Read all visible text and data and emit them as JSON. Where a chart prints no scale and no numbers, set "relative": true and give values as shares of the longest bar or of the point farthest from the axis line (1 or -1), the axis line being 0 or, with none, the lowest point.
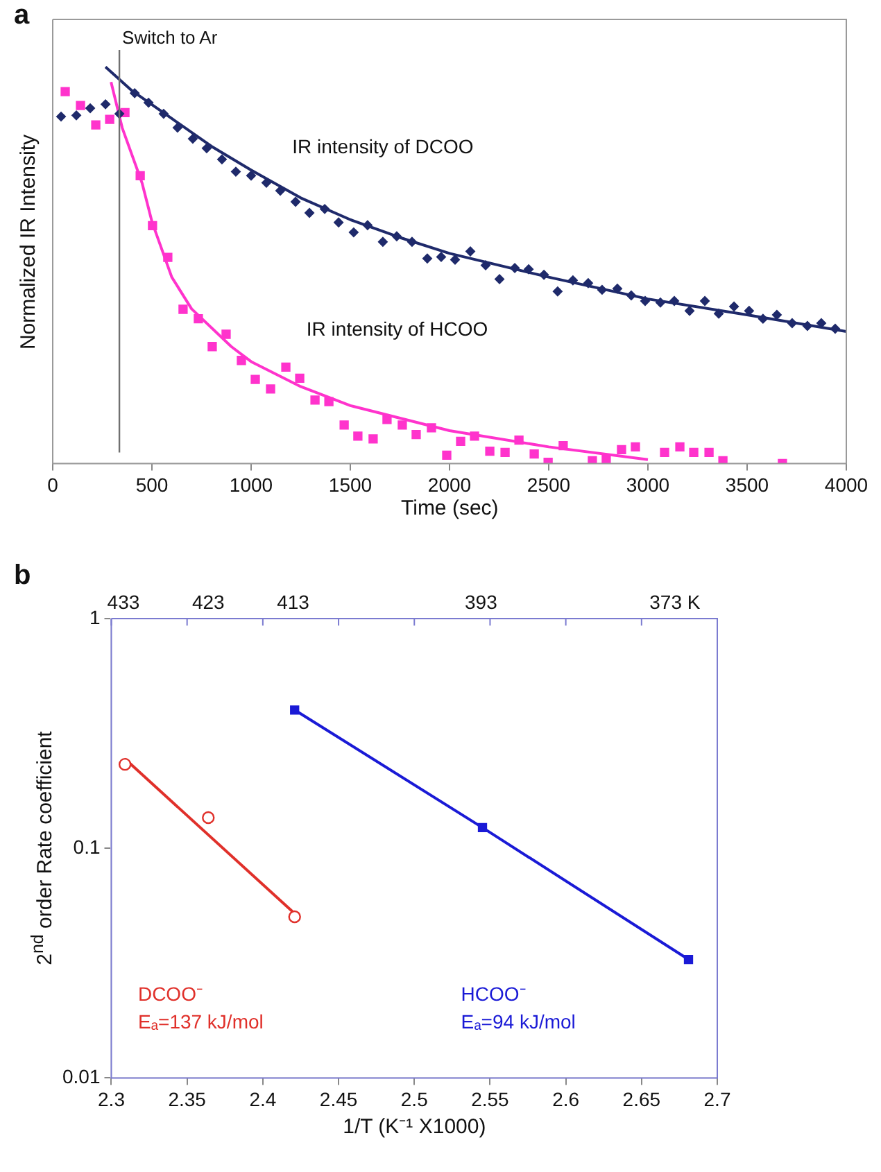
{
  "chart_data": [
    {
      "type": "scatter",
      "xlabel": "Time (sec)",
      "ylabel": "Normalized IR Intensity",
      "relative": true,
      "annotations": [
        "a"
      ],
      "xlim": [
        0,
        4000
      ],
      "xticks": [
        0,
        500,
        1000,
        1500,
        2000,
        2500,
        3000,
        3500,
        4000
      ],
      "grid": false,
      "ref_lines": [
        {
          "axis": "x",
          "value": 336,
          "label": "Switch to Ar",
          "color": "#707070"
        }
      ],
      "series": [
        {
          "name": "IR intensity of DCOO",
          "type": "scatter",
          "marker": "diamond",
          "color": "#1f2a6b",
          "x": [
            42,
            119,
            189,
            266,
            336,
            413,
            483,
            559,
            629,
            706,
            776,
            853,
            923,
            1000,
            1077,
            1147,
            1224,
            1294,
            1371,
            1441,
            1517,
            1587,
            1664,
            1734,
            1811,
            1888,
            1958,
            2028,
            2105,
            2182,
            2252,
            2329,
            2399,
            2476,
            2545,
            2622,
            2699,
            2769,
            2846,
            2916,
            2986,
            3063,
            3133,
            3210,
            3287,
            3357,
            3434,
            3510,
            3580,
            3650,
            3727,
            3804,
            3874,
            3944
          ],
          "values": [
            0.875,
            0.878,
            0.896,
            0.906,
            0.882,
            0.934,
            0.91,
            0.882,
            0.847,
            0.819,
            0.795,
            0.767,
            0.736,
            0.726,
            0.708,
            0.688,
            0.66,
            0.632,
            0.642,
            0.608,
            0.583,
            0.601,
            0.559,
            0.573,
            0.559,
            0.517,
            0.521,
            0.514,
            0.535,
            0.5,
            0.465,
            0.493,
            0.49,
            0.476,
            0.434,
            0.462,
            0.455,
            0.438,
            0.441,
            0.424,
            0.41,
            0.406,
            0.41,
            0.385,
            0.41,
            0.378,
            0.396,
            0.385,
            0.365,
            0.375,
            0.354,
            0.347,
            0.354,
            0.34
          ]
        },
        {
          "name": "IR intensity of HCOO",
          "type": "scatter",
          "marker": "square",
          "color": "#ff33cc",
          "x": [
            63,
            140,
            217,
            287,
            364,
            441,
            503,
            580,
            657,
            734,
            804,
            874,
            951,
            1021,
            1098,
            1175,
            1245,
            1322,
            1392,
            1469,
            1538,
            1615,
            1685,
            1762,
            1832,
            1909,
            1986,
            2056,
            2126,
            2203,
            2280,
            2350,
            2427,
            2497,
            2573,
            2720,
            2790,
            2867,
            2937,
            3084,
            3161,
            3231,
            3308,
            3378,
            3678
          ],
          "values": [
            0.938,
            0.903,
            0.854,
            0.868,
            0.885,
            0.726,
            0.6,
            0.52,
            0.389,
            0.365,
            0.295,
            0.326,
            0.26,
            0.212,
            0.188,
            0.243,
            0.215,
            0.16,
            0.156,
            0.097,
            0.069,
            0.062,
            0.111,
            0.097,
            0.073,
            0.09,
            0.021,
            0.056,
            0.069,
            0.031,
            0.028,
            0.059,
            0.024,
            0.003,
            0.045,
            0.007,
            0.01,
            0.035,
            0.042,
            0.028,
            0.042,
            0.028,
            0.028,
            0.007,
            0.0
          ]
        },
        {
          "type": "line",
          "marker": "none",
          "color": "#1f2a6b",
          "x": [
            266,
            400,
            600,
            800,
            1000,
            1250,
            1500,
            1750,
            2000,
            2500,
            3000,
            3500,
            4000
          ],
          "values": [
            1.0,
            0.94,
            0.87,
            0.8,
            0.74,
            0.67,
            0.615,
            0.57,
            0.53,
            0.47,
            0.415,
            0.375,
            0.333
          ]
        },
        {
          "type": "line",
          "marker": "none",
          "color": "#ff33cc",
          "x": [
            294,
            350,
            450,
            500,
            600,
            700,
            900,
            1000,
            1250,
            1500,
            2000,
            2500,
            3000
          ],
          "values": [
            0.962,
            0.847,
            0.708,
            0.61,
            0.47,
            0.39,
            0.295,
            0.257,
            0.194,
            0.146,
            0.083,
            0.042,
            0.01
          ]
        }
      ]
    },
    {
      "type": "scatter",
      "xlabel": "1/T (K⁻¹ X1000)",
      "ylabel": "2$^{nd}$ order Rate coefficient",
      "annotations": [
        "b",
        "433",
        "423",
        "413",
        "393",
        "373 K"
      ],
      "log": "y",
      "grid": false,
      "xlim": [
        2.3,
        2.7
      ],
      "xticks": [
        2.3,
        2.35,
        2.4,
        2.45,
        2.5,
        2.55,
        2.6,
        2.65,
        2.7
      ],
      "ylim": [
        0.01,
        1
      ],
      "yticks": [
        0.01,
        0.1,
        1
      ],
      "series": [
        {
          "name": "DCOO⁻\nEₐ=137 kJ/mol",
          "type": "scatter",
          "marker": "circle",
          "color": "#e0302a",
          "x": [
            2.309,
            2.364,
            2.421
          ],
          "values": [
            0.232,
            0.136,
            0.0503
          ]
        },
        {
          "type": "line",
          "marker": "none",
          "color": "#e0302a",
          "x": [
            2.309,
            2.421
          ],
          "values": [
            0.245,
            0.052
          ]
        },
        {
          "name": "HCOO⁻\nEₐ=94 kJ/mol",
          "type": "line",
          "marker": "square",
          "color": "#1a1ad6",
          "x": [
            2.421,
            2.545,
            2.681
          ],
          "values": [
            0.4,
            0.123,
            0.0328
          ]
        }
      ]
    }
  ]
}
